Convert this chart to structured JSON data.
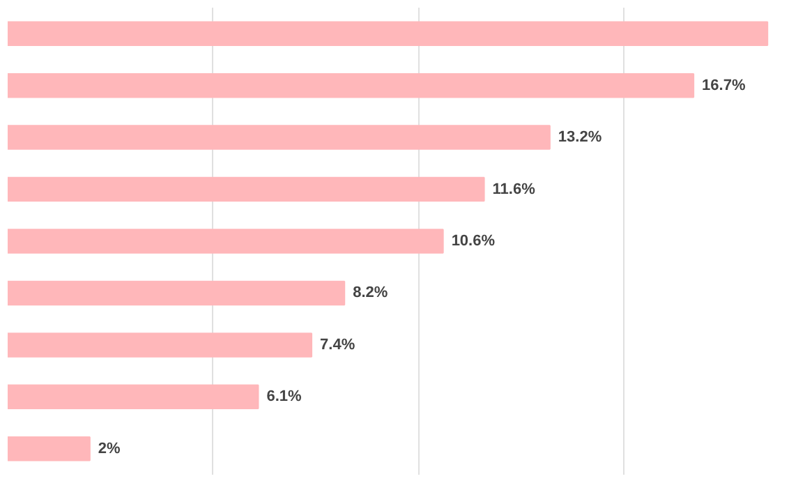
{
  "chart_data": {
    "type": "bar",
    "orientation": "horizontal",
    "categories": [
      null,
      null,
      null,
      null,
      null,
      null,
      null,
      null,
      null
    ],
    "values": [
      18.5,
      16.7,
      13.2,
      11.6,
      10.6,
      8.2,
      7.4,
      6.1,
      2
    ],
    "value_labels": [
      null,
      "16.7%",
      "13.2%",
      "11.6%",
      "10.6%",
      "8.2%",
      "7.4%",
      "6.1%",
      "2%"
    ],
    "color": "#ffb7ba",
    "grid": "x",
    "tick_labels": false
  }
}
